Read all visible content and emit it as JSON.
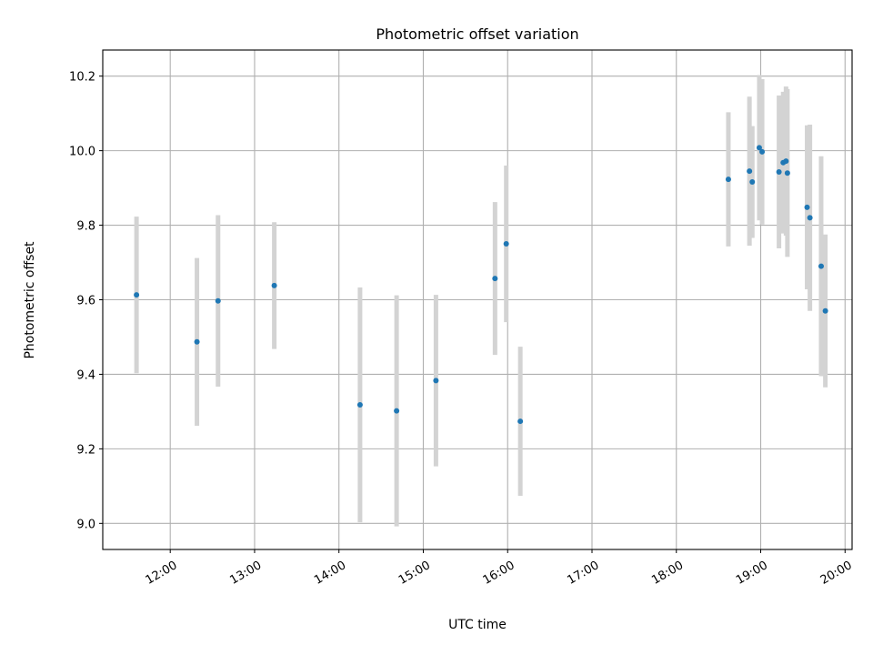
{
  "chart_data": {
    "type": "scatter",
    "title": "Photometric offset variation",
    "xlabel": "UTC time",
    "ylabel": "Photometric offset",
    "xlim": [
      "11:12",
      "20:05"
    ],
    "ylim": [
      8.93,
      10.27
    ],
    "x_ticks": [
      "12:00",
      "13:00",
      "14:00",
      "15:00",
      "16:00",
      "17:00",
      "18:00",
      "19:00",
      "20:00"
    ],
    "y_ticks": [
      9.0,
      9.2,
      9.4,
      9.6,
      9.8,
      10.0,
      10.2
    ],
    "grid": true,
    "colors": {
      "marker": "#1f77b4",
      "errorbar": "#d3d3d3",
      "grid": "#b0b0b0"
    },
    "points": [
      {
        "x": "11:36",
        "y": 9.613,
        "yerr": 0.21
      },
      {
        "x": "12:19",
        "y": 9.487,
        "yerr": 0.225
      },
      {
        "x": "12:34",
        "y": 9.597,
        "yerr": 0.23
      },
      {
        "x": "13:14",
        "y": 9.638,
        "yerr": 0.17
      },
      {
        "x": "14:15",
        "y": 9.318,
        "yerr": 0.315
      },
      {
        "x": "14:41",
        "y": 9.302,
        "yerr": 0.31
      },
      {
        "x": "15:09",
        "y": 9.383,
        "yerr": 0.23
      },
      {
        "x": "15:51",
        "y": 9.657,
        "yerr": 0.205
      },
      {
        "x": "15:59",
        "y": 9.75,
        "yerr": 0.21
      },
      {
        "x": "16:09",
        "y": 9.274,
        "yerr": 0.2
      },
      {
        "x": "18:37",
        "y": 9.923,
        "yerr": 0.18
      },
      {
        "x": "18:52",
        "y": 9.945,
        "yerr": 0.2
      },
      {
        "x": "18:54",
        "y": 9.916,
        "yerr": 0.15
      },
      {
        "x": "18:59",
        "y": 10.008,
        "yerr": 0.195
      },
      {
        "x": "19:01",
        "y": 9.997,
        "yerr": 0.195
      },
      {
        "x": "19:13",
        "y": 9.943,
        "yerr": 0.205
      },
      {
        "x": "19:16",
        "y": 9.968,
        "yerr": 0.19
      },
      {
        "x": "19:18",
        "y": 9.972,
        "yerr": 0.2
      },
      {
        "x": "19:19",
        "y": 9.94,
        "yerr": 0.225
      },
      {
        "x": "19:33",
        "y": 9.848,
        "yerr": 0.22
      },
      {
        "x": "19:35",
        "y": 9.82,
        "yerr": 0.25
      },
      {
        "x": "19:43",
        "y": 9.69,
        "yerr": 0.295
      },
      {
        "x": "19:46",
        "y": 9.57,
        "yerr": 0.205
      }
    ]
  }
}
